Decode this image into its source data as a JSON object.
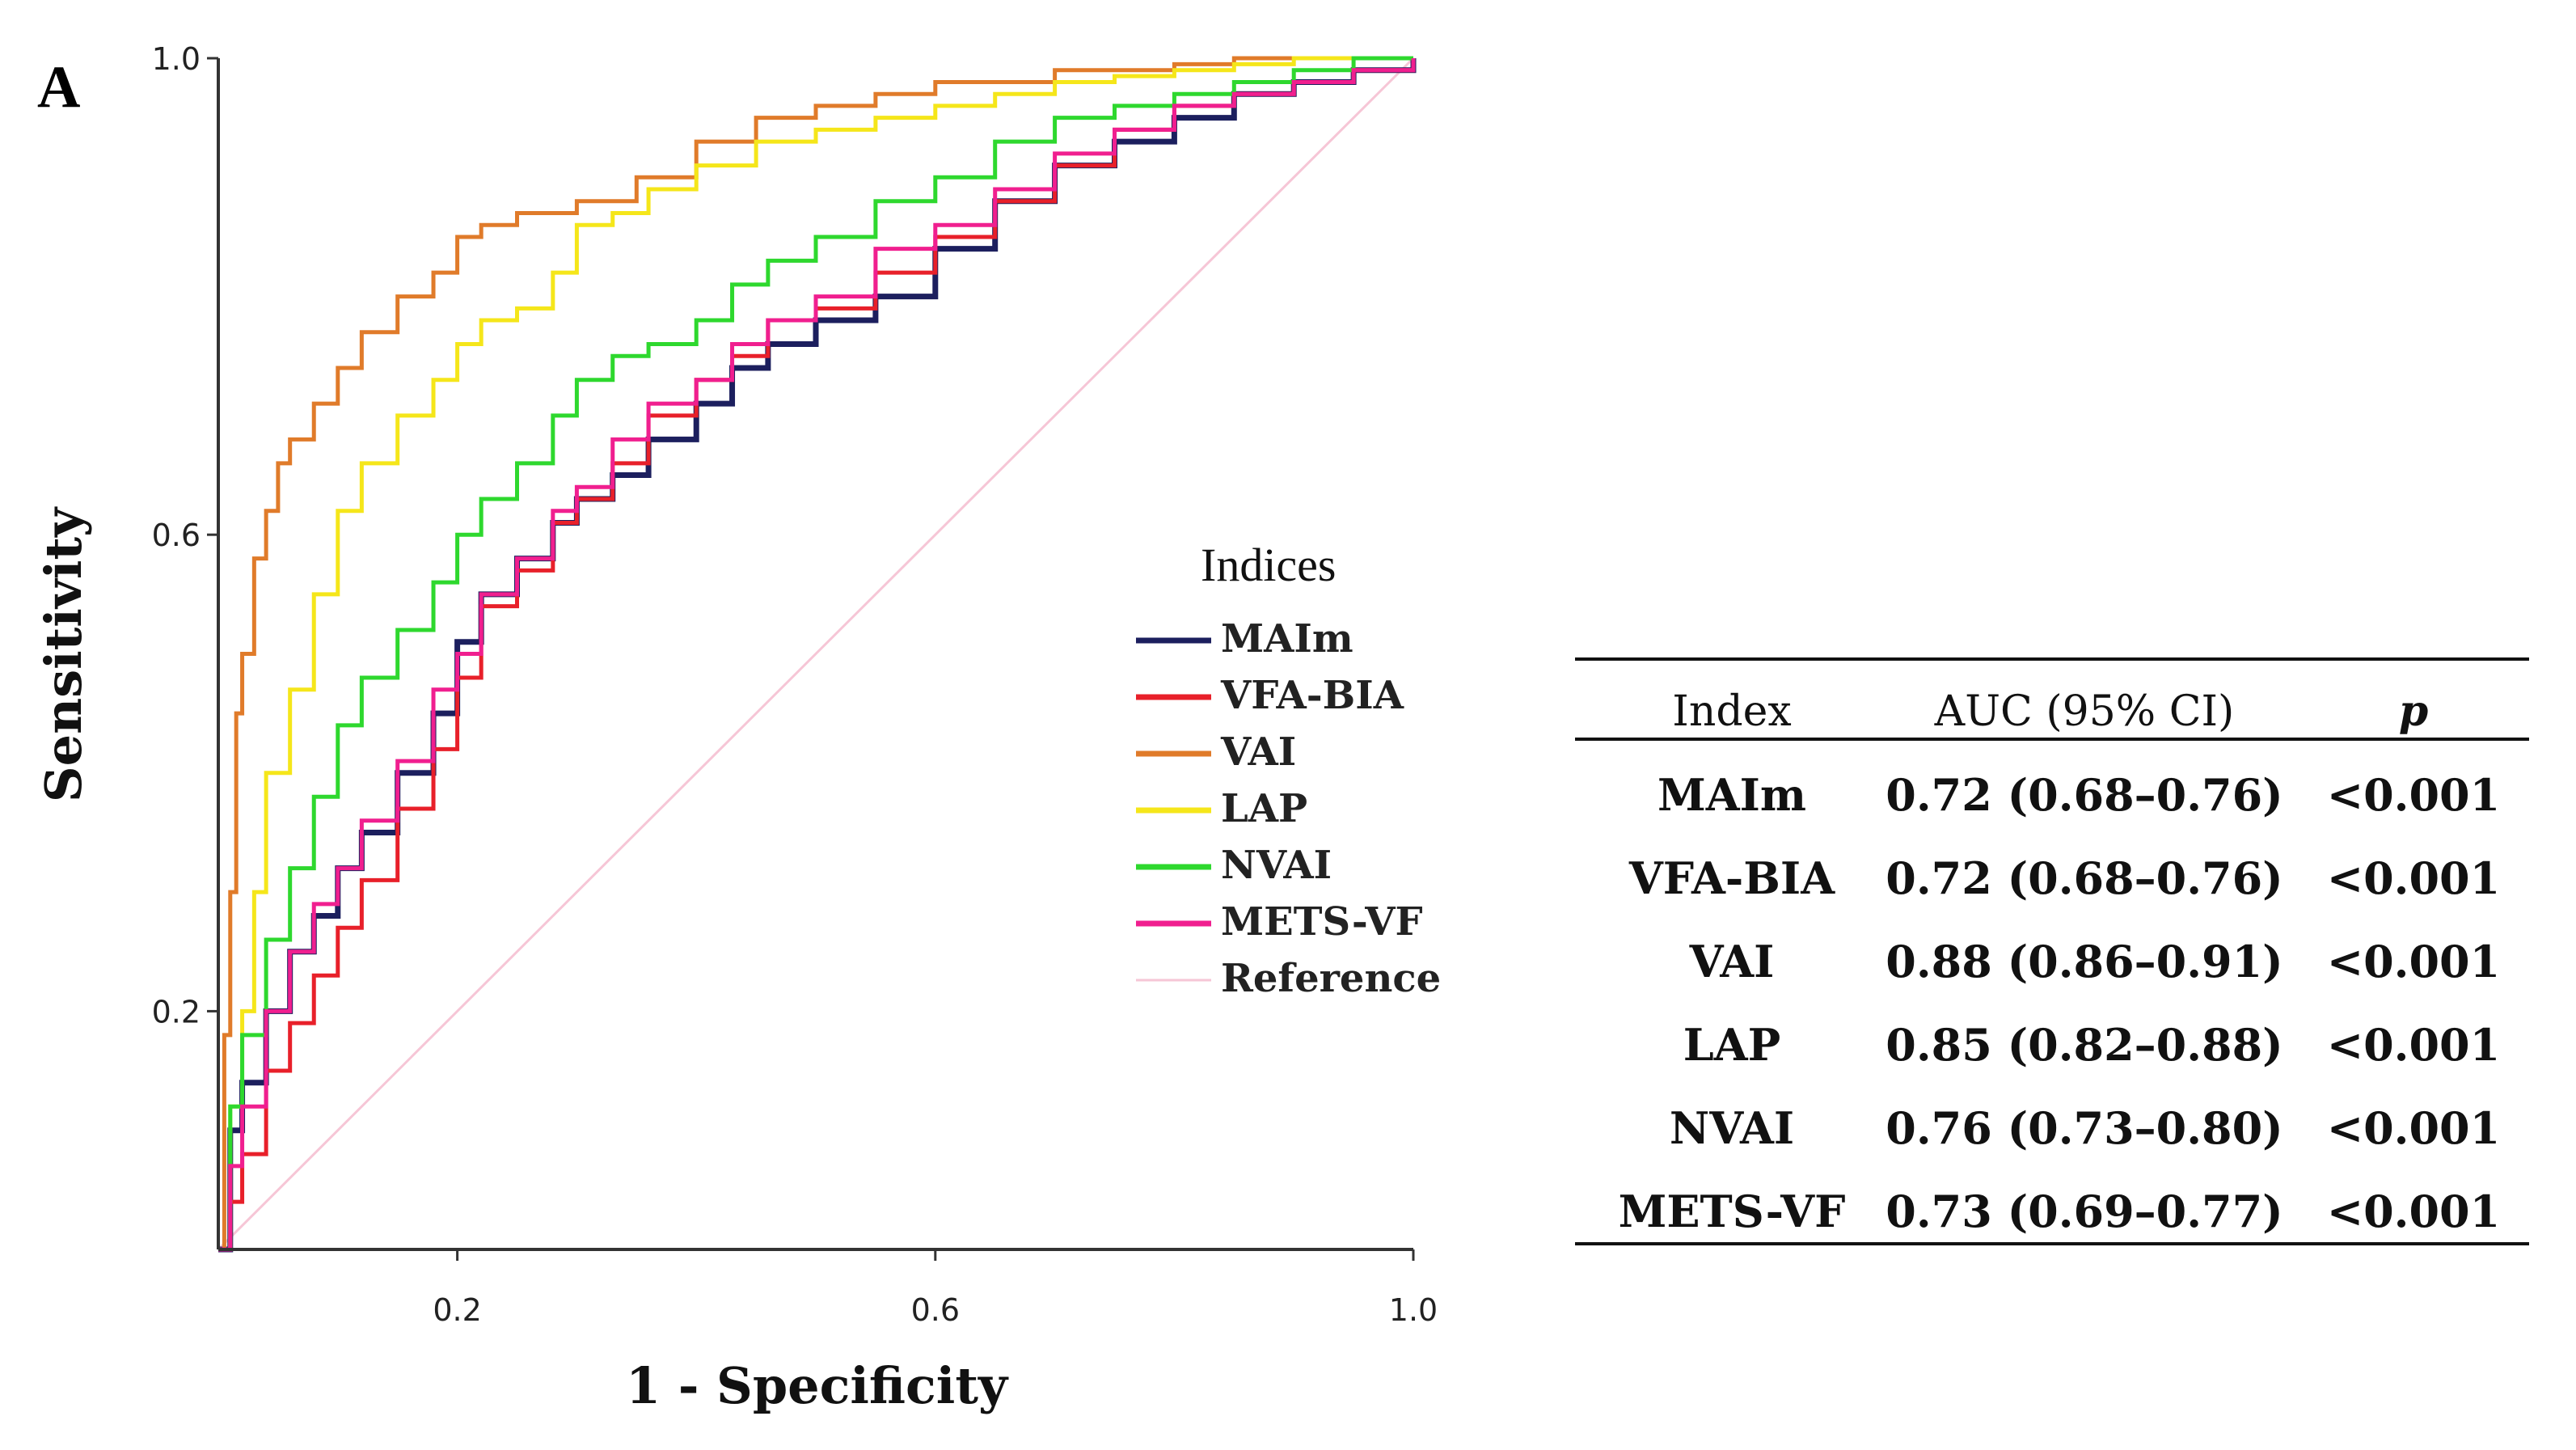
{
  "panel_label": "A",
  "legend_title": "Indices",
  "chart_data": {
    "type": "line",
    "title": "",
    "xlabel": "1 - Specificity",
    "ylabel": "Sensitivity",
    "xlim": [
      0,
      1
    ],
    "ylim": [
      0,
      1
    ],
    "x_ticks": [
      0.2,
      0.6,
      1.0
    ],
    "x_tick_labels": [
      "0.2",
      "0.6",
      "1.0"
    ],
    "y_ticks": [
      0.2,
      0.6,
      1.0
    ],
    "y_tick_labels": [
      "0.2",
      "0.6",
      "1.0"
    ],
    "legend_position": "center-right",
    "grid": false,
    "series": [
      {
        "name": "MAIm",
        "color": "#1c1f5e",
        "x": [
          0,
          0.01,
          0.02,
          0.04,
          0.06,
          0.08,
          0.1,
          0.12,
          0.15,
          0.18,
          0.2,
          0.22,
          0.25,
          0.28,
          0.3,
          0.33,
          0.36,
          0.4,
          0.43,
          0.46,
          0.5,
          0.55,
          0.6,
          0.65,
          0.7,
          0.75,
          0.8,
          0.85,
          0.9,
          0.95,
          1.0
        ],
        "y": [
          0,
          0.1,
          0.14,
          0.2,
          0.25,
          0.28,
          0.32,
          0.35,
          0.4,
          0.45,
          0.51,
          0.55,
          0.58,
          0.61,
          0.63,
          0.65,
          0.68,
          0.71,
          0.74,
          0.76,
          0.78,
          0.8,
          0.84,
          0.88,
          0.91,
          0.93,
          0.95,
          0.97,
          0.98,
          0.99,
          1.0
        ]
      },
      {
        "name": "VFA-BIA",
        "color": "#e8202a",
        "x": [
          0,
          0.01,
          0.02,
          0.04,
          0.06,
          0.08,
          0.1,
          0.12,
          0.15,
          0.18,
          0.2,
          0.22,
          0.25,
          0.28,
          0.3,
          0.33,
          0.36,
          0.4,
          0.43,
          0.46,
          0.5,
          0.55,
          0.6,
          0.65,
          0.7,
          0.75,
          0.8,
          0.85,
          0.9,
          0.95,
          1.0
        ],
        "y": [
          0,
          0.04,
          0.08,
          0.15,
          0.19,
          0.23,
          0.27,
          0.31,
          0.37,
          0.42,
          0.48,
          0.54,
          0.57,
          0.61,
          0.63,
          0.66,
          0.7,
          0.73,
          0.75,
          0.78,
          0.79,
          0.82,
          0.85,
          0.88,
          0.91,
          0.94,
          0.96,
          0.97,
          0.98,
          0.99,
          1.0
        ]
      },
      {
        "name": "VAI",
        "color": "#e07b2a",
        "x": [
          0,
          0.005,
          0.01,
          0.015,
          0.02,
          0.03,
          0.04,
          0.05,
          0.06,
          0.08,
          0.1,
          0.12,
          0.15,
          0.18,
          0.2,
          0.22,
          0.25,
          0.3,
          0.35,
          0.4,
          0.45,
          0.5,
          0.55,
          0.6,
          0.65,
          0.7,
          0.75,
          0.8,
          0.85,
          0.9,
          0.95,
          1.0
        ],
        "y": [
          0,
          0.18,
          0.3,
          0.45,
          0.5,
          0.58,
          0.62,
          0.66,
          0.68,
          0.71,
          0.74,
          0.77,
          0.8,
          0.82,
          0.85,
          0.86,
          0.87,
          0.88,
          0.9,
          0.93,
          0.95,
          0.96,
          0.97,
          0.98,
          0.98,
          0.99,
          0.99,
          0.995,
          1.0,
          1.0,
          1.0,
          1.0
        ]
      },
      {
        "name": "LAP",
        "color": "#f5e61a",
        "x": [
          0,
          0.01,
          0.02,
          0.03,
          0.04,
          0.06,
          0.08,
          0.1,
          0.12,
          0.15,
          0.18,
          0.2,
          0.22,
          0.25,
          0.28,
          0.3,
          0.33,
          0.36,
          0.4,
          0.45,
          0.5,
          0.55,
          0.6,
          0.65,
          0.7,
          0.75,
          0.8,
          0.85,
          0.9,
          0.95,
          1.0
        ],
        "y": [
          0,
          0.12,
          0.2,
          0.3,
          0.4,
          0.47,
          0.55,
          0.62,
          0.66,
          0.7,
          0.73,
          0.76,
          0.78,
          0.79,
          0.82,
          0.86,
          0.87,
          0.89,
          0.91,
          0.93,
          0.94,
          0.95,
          0.96,
          0.97,
          0.98,
          0.985,
          0.99,
          0.995,
          1.0,
          1.0,
          1.0
        ]
      },
      {
        "name": "NVAI",
        "color": "#2ed82e",
        "x": [
          0,
          0.01,
          0.02,
          0.04,
          0.06,
          0.08,
          0.1,
          0.12,
          0.15,
          0.18,
          0.2,
          0.22,
          0.25,
          0.28,
          0.3,
          0.33,
          0.36,
          0.4,
          0.43,
          0.46,
          0.5,
          0.55,
          0.6,
          0.65,
          0.7,
          0.75,
          0.8,
          0.85,
          0.9,
          0.95,
          1.0
        ],
        "y": [
          0,
          0.12,
          0.18,
          0.26,
          0.32,
          0.38,
          0.44,
          0.48,
          0.52,
          0.56,
          0.6,
          0.63,
          0.66,
          0.7,
          0.73,
          0.75,
          0.76,
          0.78,
          0.81,
          0.83,
          0.85,
          0.88,
          0.9,
          0.93,
          0.95,
          0.96,
          0.97,
          0.98,
          0.99,
          1.0,
          1.0
        ]
      },
      {
        "name": "METS-VF",
        "color": "#f01f8f",
        "x": [
          0,
          0.01,
          0.02,
          0.04,
          0.06,
          0.08,
          0.1,
          0.12,
          0.15,
          0.18,
          0.2,
          0.22,
          0.25,
          0.28,
          0.3,
          0.33,
          0.36,
          0.4,
          0.43,
          0.46,
          0.5,
          0.55,
          0.6,
          0.65,
          0.7,
          0.75,
          0.8,
          0.85,
          0.9,
          0.95,
          1.0
        ],
        "y": [
          0,
          0.07,
          0.12,
          0.2,
          0.25,
          0.29,
          0.32,
          0.36,
          0.41,
          0.47,
          0.5,
          0.55,
          0.58,
          0.62,
          0.64,
          0.68,
          0.71,
          0.73,
          0.76,
          0.78,
          0.8,
          0.84,
          0.86,
          0.89,
          0.92,
          0.94,
          0.96,
          0.97,
          0.98,
          0.99,
          1.0
        ]
      },
      {
        "name": "Reference",
        "color": "#f6c6d6",
        "x": [
          0,
          1
        ],
        "y": [
          0,
          1
        ]
      }
    ]
  },
  "table": {
    "headers": [
      "Index",
      "AUC (95% CI)",
      "p"
    ],
    "rows": [
      [
        "MAIm",
        "0.72 (0.68–0.76)",
        "<0.001"
      ],
      [
        "VFA-BIA",
        "0.72 (0.68–0.76)",
        "<0.001"
      ],
      [
        "VAI",
        "0.88 (0.86–0.91)",
        "<0.001"
      ],
      [
        "LAP",
        "0.85 (0.82–0.88)",
        "<0.001"
      ],
      [
        "NVAI",
        "0.76 (0.73–0.80)",
        "<0.001"
      ],
      [
        "METS-VF",
        "0.73 (0.69–0.77)",
        "<0.001"
      ]
    ]
  }
}
